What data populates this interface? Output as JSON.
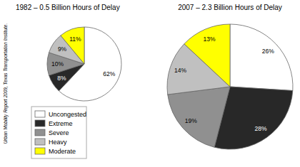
{
  "chart_data": [
    {
      "type": "pie",
      "title": "1982 – 0.5 Billion Hours of Delay",
      "categories": [
        "Uncongested",
        "Extreme",
        "Severe",
        "Heavy",
        "Moderate"
      ],
      "values": [
        62,
        8,
        10,
        9,
        11
      ],
      "value_labels": [
        "62%",
        "8%",
        "10%",
        "9%",
        "11%"
      ],
      "colors": [
        "#ffffff",
        "#282828",
        "#909090",
        "#c0c0c0",
        "#ffff00"
      ],
      "data_labels": true,
      "legend": "lower left",
      "annotations": [
        "Urban Mobility Report 2009, Texas Transportation Institute."
      ]
    },
    {
      "type": "pie",
      "title": "2007 – 2.3 Billion Hours of Delay",
      "categories": [
        "Uncongested",
        "Extreme",
        "Severe",
        "Heavy",
        "Moderate"
      ],
      "values": [
        26,
        28,
        19,
        14,
        13
      ],
      "value_labels": [
        "26%",
        "28%",
        "19%",
        "14%",
        "13%"
      ],
      "colors": [
        "#ffffff",
        "#282828",
        "#909090",
        "#c0c0c0",
        "#ffff00"
      ],
      "data_labels": true
    }
  ]
}
